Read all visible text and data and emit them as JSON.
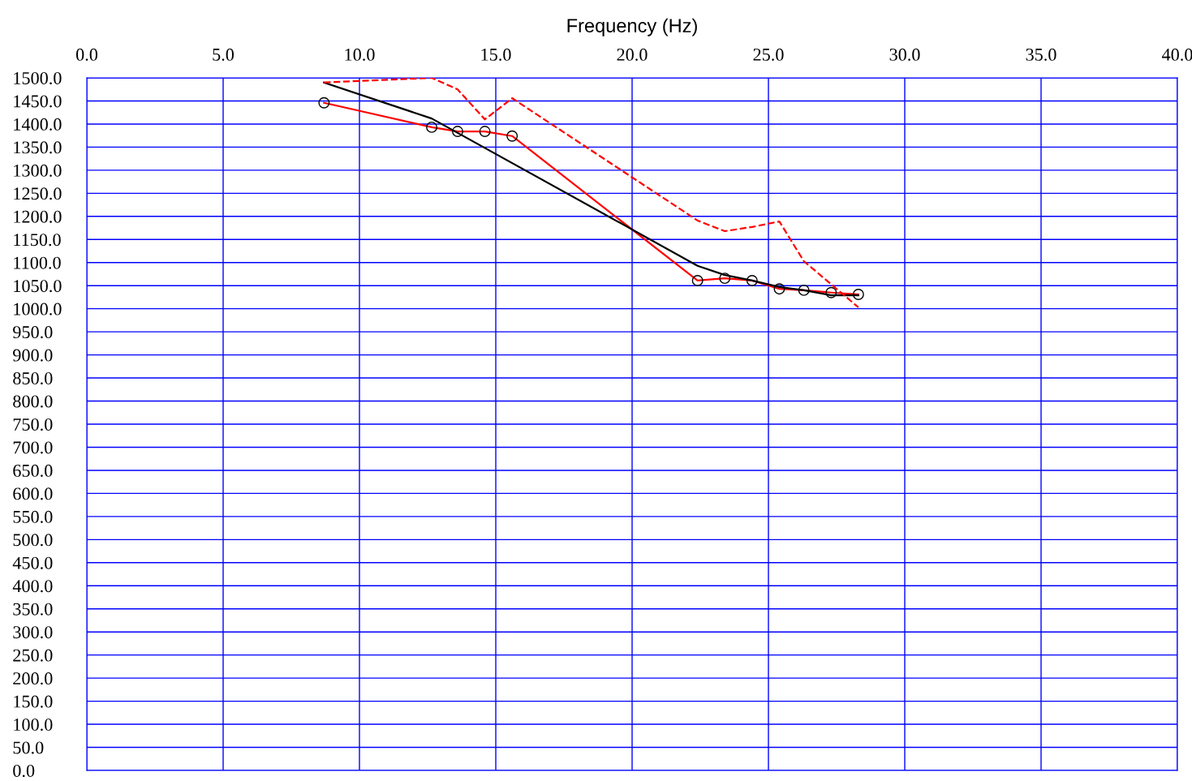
{
  "chart_data": {
    "type": "line",
    "xlabel": "Frequency (Hz)",
    "xlim": [
      0,
      40
    ],
    "xticks": [
      {
        "value": 0,
        "label": "0.0"
      },
      {
        "value": 5,
        "label": "5.0"
      },
      {
        "value": 10,
        "label": "10.0"
      },
      {
        "value": 15,
        "label": "15.0"
      },
      {
        "value": 20,
        "label": "20.0"
      },
      {
        "value": 25,
        "label": "25.0"
      },
      {
        "value": 30,
        "label": "30.0"
      },
      {
        "value": 35,
        "label": "35.0"
      },
      {
        "value": 40,
        "label": "40.0"
      }
    ],
    "ylim": [
      0,
      1500
    ],
    "yticks": [
      {
        "value": 0,
        "label": "0.0"
      },
      {
        "value": 50,
        "label": "50.0"
      },
      {
        "value": 100,
        "label": "100.0"
      },
      {
        "value": 150,
        "label": "150.0"
      },
      {
        "value": 200,
        "label": "200.0"
      },
      {
        "value": 250,
        "label": "250.0"
      },
      {
        "value": 300,
        "label": "300.0"
      },
      {
        "value": 350,
        "label": "350.0"
      },
      {
        "value": 400,
        "label": "400.0"
      },
      {
        "value": 450,
        "label": "450.0"
      },
      {
        "value": 500,
        "label": "500.0"
      },
      {
        "value": 550,
        "label": "550.0"
      },
      {
        "value": 600,
        "label": "600.0"
      },
      {
        "value": 650,
        "label": "650.0"
      },
      {
        "value": 700,
        "label": "700.0"
      },
      {
        "value": 750,
        "label": "750.0"
      },
      {
        "value": 800,
        "label": "800.0"
      },
      {
        "value": 850,
        "label": "850.0"
      },
      {
        "value": 900,
        "label": "900.0"
      },
      {
        "value": 950,
        "label": "950.0"
      },
      {
        "value": 1000,
        "label": "1000.0"
      },
      {
        "value": 1050,
        "label": "1050.0"
      },
      {
        "value": 1100,
        "label": "1100.0"
      },
      {
        "value": 1150,
        "label": "1150.0"
      },
      {
        "value": 1200,
        "label": "1200.0"
      },
      {
        "value": 1250,
        "label": "1250.0"
      },
      {
        "value": 1300,
        "label": "1300.0"
      },
      {
        "value": 1350,
        "label": "1350.0"
      },
      {
        "value": 1400,
        "label": "1400.0"
      },
      {
        "value": 1450,
        "label": "1450.0"
      },
      {
        "value": 1500,
        "label": "1500.0"
      }
    ],
    "grid": true,
    "series": [
      {
        "color": "#ff0000",
        "marker": "circle",
        "line_style": "solid",
        "x": [
          8.7,
          12.65,
          13.6,
          14.6,
          15.6,
          22.4,
          23.4,
          24.4,
          25.4,
          26.3,
          27.3,
          28.3
        ],
        "values": [
          1446,
          1393,
          1384,
          1384,
          1374,
          1061,
          1066,
          1061,
          1043,
          1040,
          1035,
          1031
        ]
      },
      {
        "color": "#000000",
        "line_style": "solid",
        "x": [
          8.7,
          12.65,
          22.4,
          23.4,
          24.4,
          25.4,
          26.3,
          27.3,
          28.3
        ],
        "values": [
          1490,
          1412,
          1093,
          1073,
          1061,
          1047,
          1040,
          1029,
          1029
        ]
      },
      {
        "color": "#ff0000",
        "line_style": "dashed",
        "x": [
          8.7,
          12.65,
          13.6,
          14.6,
          15.6,
          22.4,
          23.4,
          24.4,
          25.4,
          26.3,
          28.3
        ],
        "values": [
          1490,
          1500,
          1475,
          1410,
          1456,
          1191,
          1168,
          1177,
          1189,
          1103,
          1003
        ]
      }
    ]
  }
}
